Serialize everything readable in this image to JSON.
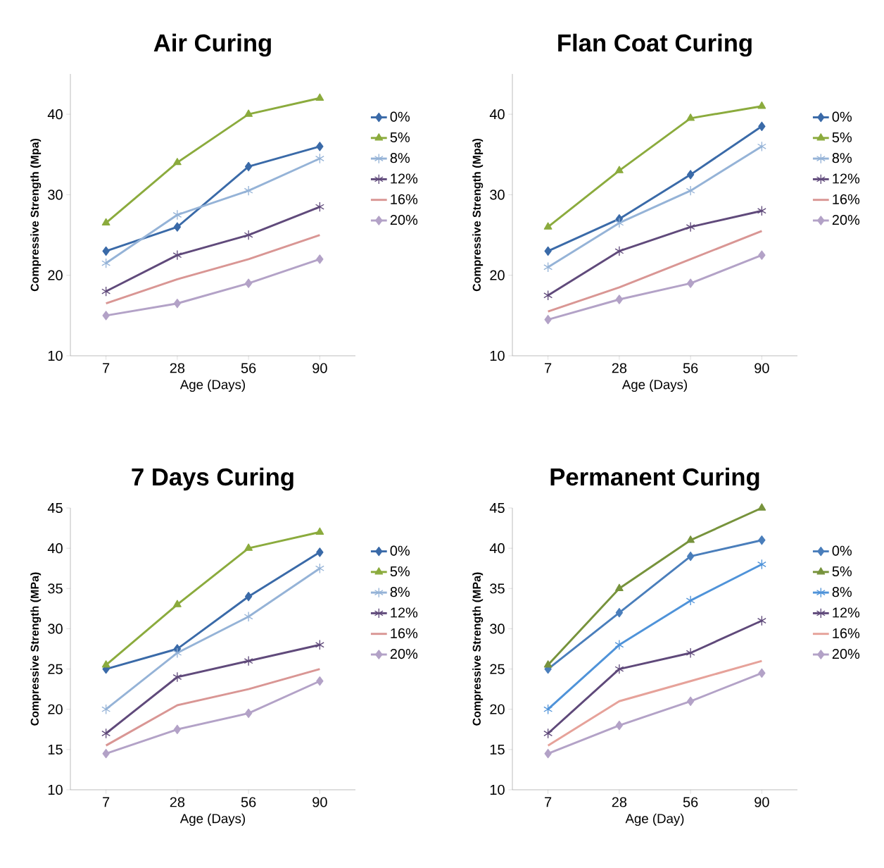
{
  "chart_data": [
    {
      "type": "line",
      "title": "Air Curing",
      "xlabel": "Age (Days)",
      "ylabel": "Compressive Strength (Mpa)",
      "categories": [
        "7",
        "28",
        "56",
        "90"
      ],
      "ylim": [
        10,
        45
      ],
      "yticks": [
        10,
        20,
        30,
        40
      ],
      "legend": "right",
      "series": [
        {
          "name": "0%",
          "color": "#3a6aa8",
          "marker": "diamond",
          "values": [
            23,
            26,
            33.5,
            36
          ]
        },
        {
          "name": "5%",
          "color": "#8bab3d",
          "marker": "triangle",
          "values": [
            26.5,
            34,
            40,
            42
          ]
        },
        {
          "name": "8%",
          "color": "#95b3d7",
          "marker": "cross",
          "values": [
            21.5,
            27.5,
            30.5,
            34.5
          ]
        },
        {
          "name": "12%",
          "color": "#604a7b",
          "marker": "cross",
          "values": [
            18,
            22.5,
            25,
            28.5
          ]
        },
        {
          "name": "16%",
          "color": "#d99694",
          "marker": "none",
          "values": [
            16.5,
            19.5,
            22,
            25
          ]
        },
        {
          "name": "20%",
          "color": "#b3a2c7",
          "marker": "diamond",
          "values": [
            15,
            16.5,
            19,
            22
          ]
        }
      ]
    },
    {
      "type": "line",
      "title": "Flan Coat Curing",
      "xlabel": "Age (Days)",
      "ylabel": "Compressive Strength (Mpa)",
      "categories": [
        "7",
        "28",
        "56",
        "90"
      ],
      "ylim": [
        10,
        45
      ],
      "yticks": [
        10,
        20,
        30,
        40
      ],
      "legend": "right",
      "series": [
        {
          "name": "0%",
          "color": "#3a6aa8",
          "marker": "diamond",
          "values": [
            23,
            27,
            32.5,
            38.5
          ]
        },
        {
          "name": "5%",
          "color": "#8bab3d",
          "marker": "triangle",
          "values": [
            26,
            33,
            39.5,
            41
          ]
        },
        {
          "name": "8%",
          "color": "#95b3d7",
          "marker": "cross",
          "values": [
            21,
            26.5,
            30.5,
            36
          ]
        },
        {
          "name": "12%",
          "color": "#604a7b",
          "marker": "cross",
          "values": [
            17.5,
            23,
            26,
            28
          ]
        },
        {
          "name": "16%",
          "color": "#d99694",
          "marker": "none",
          "values": [
            15.5,
            18.5,
            22,
            25.5
          ]
        },
        {
          "name": "20%",
          "color": "#b3a2c7",
          "marker": "diamond",
          "values": [
            14.5,
            17,
            19,
            22.5
          ]
        }
      ]
    },
    {
      "type": "line",
      "title": "7 Days Curing",
      "xlabel": "Age (Days)",
      "ylabel": "Compressive Strength (MPa)",
      "categories": [
        "7",
        "28",
        "56",
        "90"
      ],
      "ylim": [
        10,
        45
      ],
      "yticks": [
        10,
        15,
        20,
        25,
        30,
        35,
        40,
        45
      ],
      "legend": "right",
      "series": [
        {
          "name": "0%",
          "color": "#3a6aa8",
          "marker": "diamond",
          "values": [
            25,
            27.5,
            34,
            39.5
          ]
        },
        {
          "name": "5%",
          "color": "#8bab3d",
          "marker": "triangle",
          "values": [
            25.5,
            33,
            40,
            42
          ]
        },
        {
          "name": "8%",
          "color": "#95b3d7",
          "marker": "cross",
          "values": [
            20,
            27,
            31.5,
            37.5
          ]
        },
        {
          "name": "12%",
          "color": "#604a7b",
          "marker": "cross",
          "values": [
            17,
            24,
            26,
            28
          ]
        },
        {
          "name": "16%",
          "color": "#d99694",
          "marker": "none",
          "values": [
            15.5,
            20.5,
            22.5,
            25
          ]
        },
        {
          "name": "20%",
          "color": "#b3a2c7",
          "marker": "diamond",
          "values": [
            14.5,
            17.5,
            19.5,
            23.5
          ]
        }
      ]
    },
    {
      "type": "line",
      "title": "Permanent Curing",
      "xlabel": "Age (Day)",
      "ylabel": "Compressive Strength (MPa)",
      "categories": [
        "7",
        "28",
        "56",
        "90"
      ],
      "ylim": [
        10,
        45
      ],
      "yticks": [
        10,
        15,
        20,
        25,
        30,
        35,
        40,
        45
      ],
      "legend": "right",
      "series": [
        {
          "name": "0%",
          "color": "#4a7ebb",
          "marker": "diamond",
          "values": [
            25,
            32,
            39,
            41
          ]
        },
        {
          "name": "5%",
          "color": "#77933c",
          "marker": "triangle",
          "values": [
            25.5,
            35,
            41,
            45
          ]
        },
        {
          "name": "8%",
          "color": "#4f93d9",
          "marker": "cross",
          "values": [
            20,
            28,
            33.5,
            38
          ]
        },
        {
          "name": "12%",
          "color": "#5f497a",
          "marker": "cross",
          "values": [
            17,
            25,
            27,
            31
          ]
        },
        {
          "name": "16%",
          "color": "#e6a29a",
          "marker": "none",
          "values": [
            15.5,
            21,
            23.5,
            26
          ]
        },
        {
          "name": "20%",
          "color": "#b3a2c7",
          "marker": "diamond",
          "values": [
            14.5,
            18,
            21,
            24.5
          ]
        }
      ]
    }
  ]
}
